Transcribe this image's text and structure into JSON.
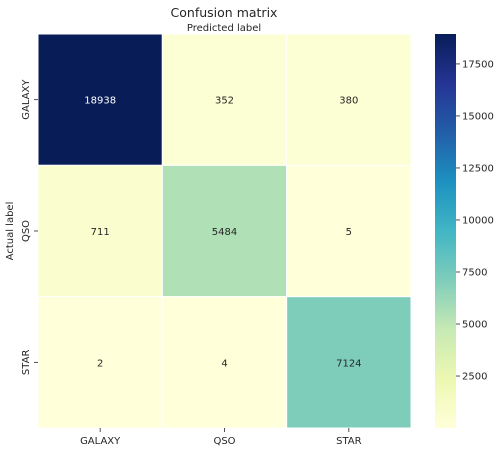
{
  "chart_data": {
    "type": "heatmap",
    "title": "Confusion matrix",
    "xlabel": "Predicted label",
    "ylabel": "Actual label",
    "x_categories": [
      "GALAXY",
      "QSO",
      "STAR"
    ],
    "y_categories": [
      "GALAXY",
      "QSO",
      "STAR"
    ],
    "values": [
      [
        18938,
        352,
        380
      ],
      [
        711,
        5484,
        5
      ],
      [
        2,
        4,
        7124
      ]
    ],
    "colormap": "YlGnBu",
    "colorbar": {
      "ticks": [
        2500,
        5000,
        7500,
        10000,
        12500,
        15000,
        17500
      ],
      "range": [
        2,
        18938
      ]
    }
  }
}
